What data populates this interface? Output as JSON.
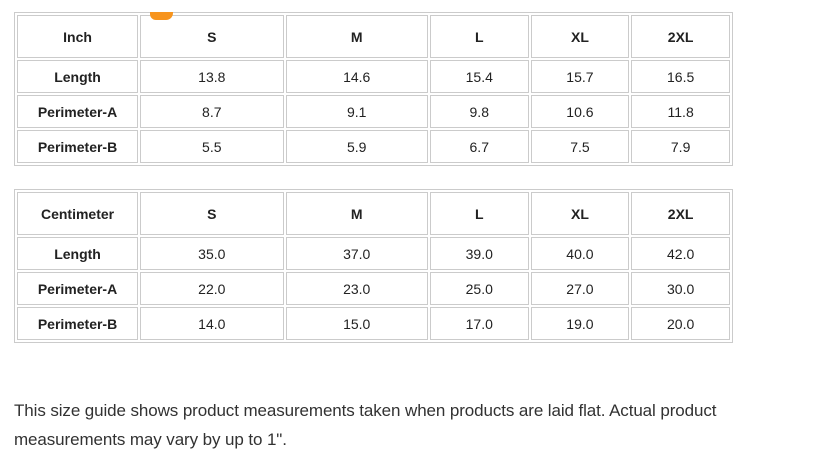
{
  "colors": {
    "accent_orange": "#f7941d",
    "table_border": "#cbcbcb",
    "text": "#222222"
  },
  "clipped_heading": {
    "visible_glyph": "g"
  },
  "tables": [
    {
      "unit_header": "Inch",
      "size_headers": [
        "S",
        "M",
        "L",
        "XL",
        "2XL"
      ],
      "rows": [
        {
          "label": "Length",
          "values": [
            "13.8",
            "14.6",
            "15.4",
            "15.7",
            "16.5"
          ]
        },
        {
          "label": "Perimeter-A",
          "values": [
            "8.7",
            "9.1",
            "9.8",
            "10.6",
            "11.8"
          ]
        },
        {
          "label": "Perimeter-B",
          "values": [
            "5.5",
            "5.9",
            "6.7",
            "7.5",
            "7.9"
          ]
        }
      ]
    },
    {
      "unit_header": "Centimeter",
      "size_headers": [
        "S",
        "M",
        "L",
        "XL",
        "2XL"
      ],
      "rows": [
        {
          "label": "Length",
          "values": [
            "35.0",
            "37.0",
            "39.0",
            "40.0",
            "42.0"
          ]
        },
        {
          "label": "Perimeter-A",
          "values": [
            "22.0",
            "23.0",
            "25.0",
            "27.0",
            "30.0"
          ]
        },
        {
          "label": "Perimeter-B",
          "values": [
            "14.0",
            "15.0",
            "17.0",
            "19.0",
            "20.0"
          ]
        }
      ]
    }
  ],
  "note": {
    "line1": "This size guide shows product measurements taken when products are laid flat. Actual product",
    "line2": "measurements may vary by up to 1\"."
  }
}
